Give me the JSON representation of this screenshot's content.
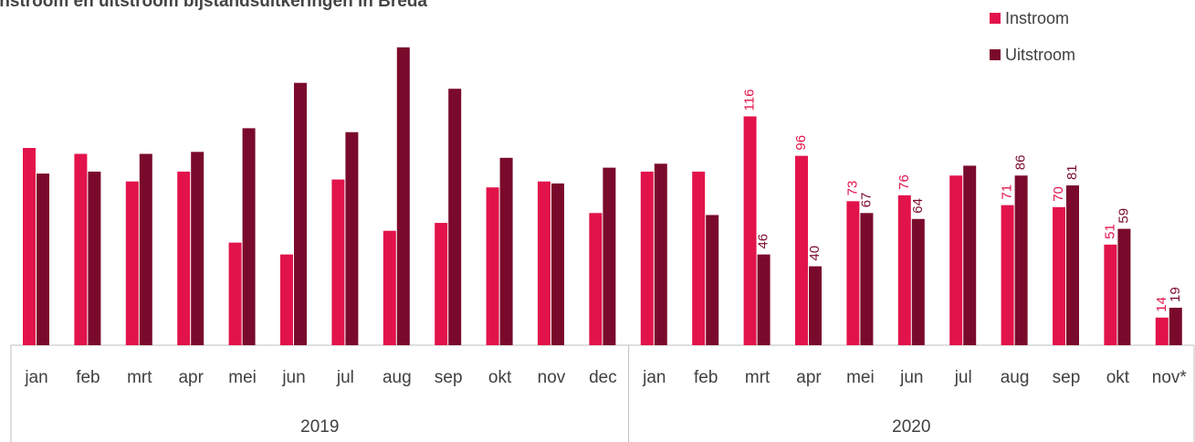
{
  "chart_data": {
    "type": "bar",
    "title": "Instroom en uitstroom bijstandsuitkeringen in Breda",
    "categories": [
      "jan",
      "feb",
      "mrt",
      "apr",
      "mei",
      "jun",
      "jul",
      "aug",
      "sep",
      "okt",
      "nov",
      "dec",
      "jan",
      "feb",
      "mrt",
      "apr",
      "mei",
      "jun",
      "jul",
      "aug",
      "sep",
      "okt",
      "nov*"
    ],
    "groups": [
      {
        "label": "2019",
        "span": 12
      },
      {
        "label": "2020",
        "span": 11
      }
    ],
    "series": [
      {
        "name": "Instroom",
        "color": "#e2134b",
        "values": [
          100,
          97,
          83,
          88,
          52,
          46,
          84,
          58,
          62,
          80,
          83,
          67,
          88,
          88,
          116,
          96,
          73,
          76,
          86,
          71,
          70,
          51,
          14
        ],
        "value_labels": [
          null,
          null,
          null,
          null,
          null,
          null,
          null,
          null,
          null,
          null,
          null,
          null,
          null,
          null,
          "116",
          "96",
          "73",
          "76",
          null,
          "71",
          "70",
          "51",
          "14"
        ]
      },
      {
        "name": "Uitstroom",
        "color": "#7a0a2b",
        "values": [
          87,
          88,
          97,
          98,
          110,
          133,
          108,
          151,
          130,
          95,
          82,
          90,
          92,
          66,
          46,
          40,
          67,
          64,
          91,
          86,
          81,
          59,
          19
        ],
        "value_labels": [
          null,
          null,
          null,
          null,
          null,
          null,
          null,
          null,
          null,
          null,
          null,
          null,
          null,
          null,
          "46",
          "40",
          "67",
          "64",
          null,
          "86",
          "81",
          "59",
          "19"
        ]
      }
    ],
    "ylim": [
      0,
      160
    ],
    "legend": "top-right"
  }
}
